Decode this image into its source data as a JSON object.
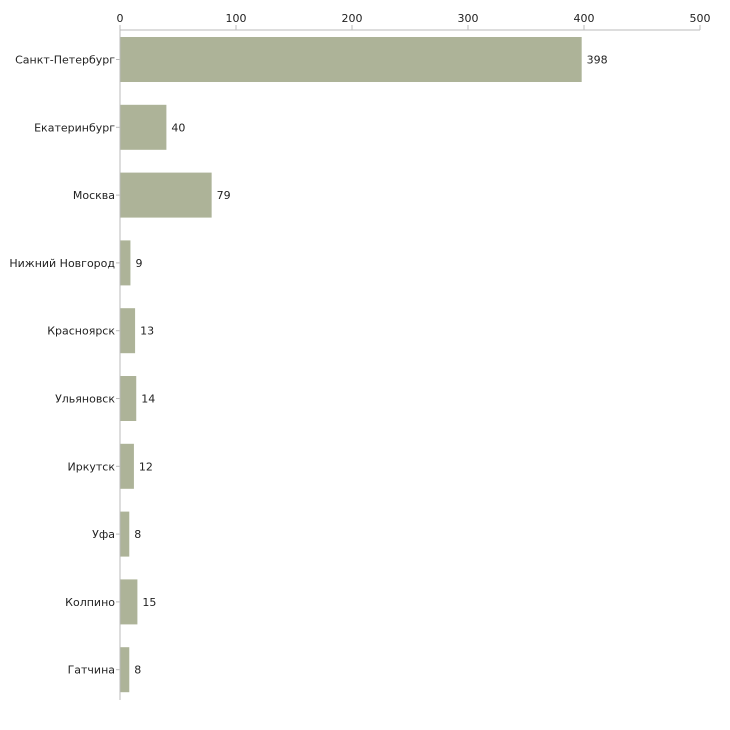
{
  "chart_data": {
    "type": "bar",
    "orientation": "horizontal",
    "title": "",
    "xlabel": "",
    "ylabel": "",
    "xlim": [
      0,
      500
    ],
    "ticks": [
      0,
      100,
      200,
      300,
      400,
      500
    ],
    "tick_labels": [
      "0",
      "100",
      "200",
      "300",
      "400",
      "500"
    ],
    "axis_position": "top",
    "grid": false,
    "bar_color": "#adb398",
    "categories": [
      "Санкт-Петербург",
      "Екатеринбург",
      "Москва",
      "Нижний Новгород",
      "Красноярск",
      "Ульяновск",
      "Иркутск",
      "Уфа",
      "Колпино",
      "Гатчина"
    ],
    "values": [
      398,
      40,
      79,
      9,
      13,
      14,
      12,
      8,
      15,
      8
    ],
    "value_labels": [
      "398",
      "40",
      "79",
      "9",
      "13",
      "14",
      "12",
      "8",
      "15",
      "8"
    ]
  }
}
